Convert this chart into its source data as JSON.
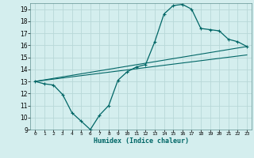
{
  "xlabel": "Humidex (Indice chaleur)",
  "ylabel": "",
  "bg_color": "#d4eeee",
  "grid_color": "#b8d8d8",
  "line_color": "#006666",
  "xlim": [
    -0.5,
    23.5
  ],
  "ylim": [
    9,
    19.5
  ],
  "yticks": [
    9,
    10,
    11,
    12,
    13,
    14,
    15,
    16,
    17,
    18,
    19
  ],
  "xticks": [
    0,
    1,
    2,
    3,
    4,
    5,
    6,
    7,
    8,
    9,
    10,
    11,
    12,
    13,
    14,
    15,
    16,
    17,
    18,
    19,
    20,
    21,
    22,
    23
  ],
  "curve1_x": [
    0,
    1,
    2,
    3,
    4,
    5,
    6,
    7,
    8,
    9,
    10,
    11,
    12,
    13,
    14,
    15,
    16,
    17,
    18,
    19,
    20,
    21,
    22,
    23
  ],
  "curve1_y": [
    13.0,
    12.8,
    12.7,
    11.9,
    10.4,
    9.7,
    9.0,
    10.2,
    11.0,
    13.1,
    13.8,
    14.2,
    14.4,
    16.3,
    18.6,
    19.3,
    19.4,
    19.0,
    17.4,
    17.3,
    17.2,
    16.5,
    16.3,
    15.9
  ],
  "curve2_x": [
    0,
    23
  ],
  "curve2_y": [
    13.0,
    15.9
  ],
  "curve3_x": [
    0,
    23
  ],
  "curve3_y": [
    13.0,
    15.2
  ]
}
